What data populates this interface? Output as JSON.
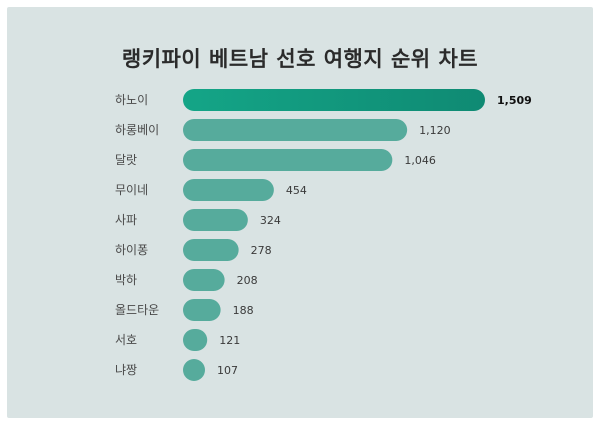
{
  "chart_data": {
    "type": "bar",
    "orientation": "horizontal",
    "title": "랭키파이 베트남 선호 여행지 순위 차트",
    "categories": [
      "하노이",
      "하롱베이",
      "달랏",
      "무이네",
      "사파",
      "하이퐁",
      "박하",
      "올드타운",
      "서호",
      "냐짱"
    ],
    "values": [
      1509,
      1120,
      1046,
      454,
      324,
      278,
      208,
      188,
      121,
      107
    ],
    "value_labels": [
      "1,509",
      "1,120",
      "1,046",
      "454",
      "324",
      "278",
      "208",
      "188",
      "121",
      "107"
    ],
    "xlim": [
      0,
      1509
    ],
    "grid": false,
    "legend": "none"
  },
  "colors": {
    "background": "#d9e3e3",
    "bar": "#56ab9c",
    "top_bar_start": "#14a587",
    "top_bar_end": "#0f8a73"
  }
}
